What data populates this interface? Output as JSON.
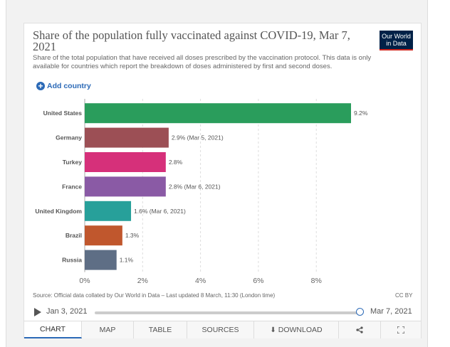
{
  "title": "Share of the population fully vaccinated against COVID-19, Mar 7, 2021",
  "subtitle": "Share of the total population that have received all doses prescribed by the vaccination protocol. This data is only available for countries which report the breakdown of doses administered by first and second doses.",
  "logo": {
    "line1": "Our World",
    "line2": "in Data"
  },
  "add_country_label": "Add country",
  "chart_data": {
    "type": "bar",
    "orientation": "horizontal",
    "title": "Share of the population fully vaccinated against COVID-19, Mar 7, 2021",
    "categories": [
      "United States",
      "Germany",
      "Turkey",
      "France",
      "United Kingdom",
      "Brazil",
      "Russia"
    ],
    "values": [
      9.2,
      2.9,
      2.8,
      2.8,
      1.6,
      1.3,
      1.1
    ],
    "labels": [
      "9.2%",
      "2.9% (Mar 5, 2021)",
      "2.8%",
      "2.8% (Mar 6, 2021)",
      "1.6% (Mar 6, 2021)",
      "1.3%",
      "1.1%"
    ],
    "colors": [
      "#2a9d5c",
      "#9c4f55",
      "#d6307a",
      "#8a5aa5",
      "#27a09a",
      "#c0572d",
      "#5e6e85"
    ],
    "xlim": [
      0,
      9.2
    ],
    "xticks": [
      0,
      2,
      4,
      6,
      8
    ],
    "xtick_labels": [
      "0%",
      "2%",
      "4%",
      "6%",
      "8%"
    ],
    "grid": true
  },
  "source": "Source: Official data collated by Our World in Data – Last updated 8 March, 11:30 (London time)",
  "license": "CC BY",
  "timeline": {
    "start": "Jan 3, 2021",
    "end": "Mar 7, 2021"
  },
  "tabs": {
    "chart": "CHART",
    "map": "MAP",
    "table": "TABLE",
    "sources": "SOURCES",
    "download": "DOWNLOAD"
  }
}
